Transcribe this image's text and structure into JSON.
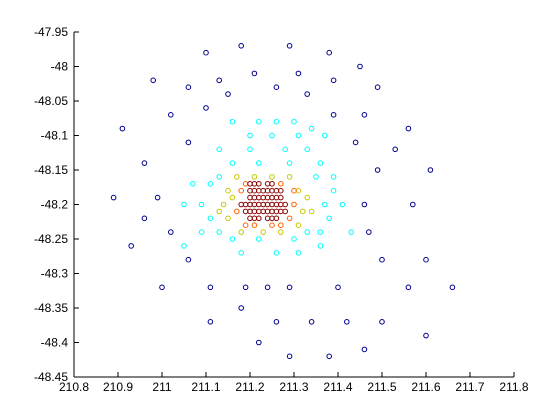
{
  "chart_data": {
    "type": "scatter",
    "title": "",
    "xlabel": "",
    "ylabel": "",
    "xlim": [
      210.8,
      211.8
    ],
    "ylim": [
      -48.45,
      -47.95
    ],
    "grid": false,
    "legend": "none",
    "marker": "circle-open",
    "xtick_labels": [
      "210.8",
      "210.9",
      "211",
      "211.1",
      "211.2",
      "211.3",
      "211.4",
      "211.5",
      "211.6",
      "211.7",
      "211.8"
    ],
    "ytick_labels": [
      "-47.95",
      "-48",
      "-48.05",
      "-48.1",
      "-48.15",
      "-48.2",
      "-48.25",
      "-48.3",
      "-48.35",
      "-48.4",
      "-48.45"
    ],
    "xticks": [
      210.8,
      210.9,
      211.0,
      211.1,
      211.2,
      211.3,
      211.4,
      211.5,
      211.6,
      211.7,
      211.8
    ],
    "yticks": [
      -47.95,
      -48.0,
      -48.05,
      -48.1,
      -48.15,
      -48.2,
      -48.25,
      -48.3,
      -48.35,
      -48.4,
      -48.45
    ],
    "color_scale": [
      "#00008f",
      "#00ffff",
      "#c8c800",
      "#ff6000",
      "#8b0000"
    ],
    "points_low": [
      [
        211.18,
        -47.97
      ],
      [
        211.1,
        -47.98
      ],
      [
        211.29,
        -47.97
      ],
      [
        211.38,
        -47.98
      ],
      [
        211.45,
        -48.0
      ],
      [
        211.21,
        -48.01
      ],
      [
        211.31,
        -48.01
      ],
      [
        211.13,
        -48.02
      ],
      [
        211.39,
        -48.02
      ],
      [
        210.98,
        -48.02
      ],
      [
        211.06,
        -48.03
      ],
      [
        211.26,
        -48.03
      ],
      [
        211.49,
        -48.03
      ],
      [
        211.15,
        -48.04
      ],
      [
        211.33,
        -48.04
      ],
      [
        211.1,
        -48.06
      ],
      [
        211.02,
        -48.07
      ],
      [
        211.39,
        -48.07
      ],
      [
        211.46,
        -48.07
      ],
      [
        211.56,
        -48.09
      ],
      [
        210.91,
        -48.09
      ],
      [
        211.53,
        -48.12
      ],
      [
        211.06,
        -48.11
      ],
      [
        211.44,
        -48.11
      ],
      [
        210.96,
        -48.14
      ],
      [
        211.49,
        -48.15
      ],
      [
        211.61,
        -48.15
      ],
      [
        210.99,
        -48.19
      ],
      [
        210.89,
        -48.19
      ],
      [
        211.46,
        -48.2
      ],
      [
        211.57,
        -48.2
      ],
      [
        211.02,
        -48.24
      ],
      [
        210.96,
        -48.22
      ],
      [
        211.47,
        -48.24
      ],
      [
        210.93,
        -48.26
      ],
      [
        211.06,
        -48.28
      ],
      [
        211.5,
        -48.28
      ],
      [
        211.6,
        -48.28
      ],
      [
        211.11,
        -48.32
      ],
      [
        211.4,
        -48.32
      ],
      [
        211.56,
        -48.32
      ],
      [
        211.0,
        -48.32
      ],
      [
        211.29,
        -48.32
      ],
      [
        211.66,
        -48.32
      ],
      [
        211.19,
        -48.32
      ],
      [
        211.18,
        -48.35
      ],
      [
        211.24,
        -48.32
      ],
      [
        211.11,
        -48.37
      ],
      [
        211.26,
        -48.37
      ],
      [
        211.34,
        -48.37
      ],
      [
        211.42,
        -48.37
      ],
      [
        211.5,
        -48.37
      ],
      [
        211.6,
        -48.39
      ],
      [
        211.22,
        -48.4
      ],
      [
        211.46,
        -48.41
      ],
      [
        211.38,
        -48.42
      ],
      [
        211.29,
        -48.42
      ]
    ],
    "points_cyan": [
      [
        211.16,
        -48.08
      ],
      [
        211.22,
        -48.08
      ],
      [
        211.26,
        -48.08
      ],
      [
        211.3,
        -48.08
      ],
      [
        211.34,
        -48.09
      ],
      [
        211.2,
        -48.1
      ],
      [
        211.25,
        -48.1
      ],
      [
        211.31,
        -48.1
      ],
      [
        211.37,
        -48.1
      ],
      [
        211.13,
        -48.12
      ],
      [
        211.2,
        -48.12
      ],
      [
        211.28,
        -48.12
      ],
      [
        211.33,
        -48.12
      ],
      [
        211.16,
        -48.14
      ],
      [
        211.22,
        -48.14
      ],
      [
        211.29,
        -48.14
      ],
      [
        211.36,
        -48.14
      ],
      [
        211.13,
        -48.16
      ],
      [
        211.35,
        -48.16
      ],
      [
        211.39,
        -48.16
      ],
      [
        211.11,
        -48.17
      ],
      [
        211.39,
        -48.18
      ],
      [
        211.09,
        -48.2
      ],
      [
        211.41,
        -48.2
      ],
      [
        211.37,
        -48.2
      ],
      [
        211.11,
        -48.22
      ],
      [
        211.38,
        -48.22
      ],
      [
        211.13,
        -48.24
      ],
      [
        211.36,
        -48.24
      ],
      [
        211.16,
        -48.25
      ],
      [
        211.22,
        -48.25
      ],
      [
        211.3,
        -48.25
      ],
      [
        211.33,
        -48.24
      ],
      [
        211.18,
        -48.27
      ],
      [
        211.26,
        -48.27
      ],
      [
        211.31,
        -48.27
      ],
      [
        211.36,
        -48.26
      ],
      [
        211.05,
        -48.26
      ],
      [
        211.09,
        -48.24
      ],
      [
        211.07,
        -48.17
      ],
      [
        211.05,
        -48.2
      ],
      [
        211.43,
        -48.24
      ]
    ],
    "points_yellow": [
      [
        211.17,
        -48.16
      ],
      [
        211.21,
        -48.16
      ],
      [
        211.25,
        -48.16
      ],
      [
        211.29,
        -48.16
      ],
      [
        211.15,
        -48.18
      ],
      [
        211.31,
        -48.18
      ],
      [
        211.33,
        -48.19
      ],
      [
        211.14,
        -48.2
      ],
      [
        211.32,
        -48.21
      ],
      [
        211.15,
        -48.22
      ],
      [
        211.31,
        -48.23
      ],
      [
        211.18,
        -48.24
      ],
      [
        211.23,
        -48.24
      ],
      [
        211.27,
        -48.24
      ],
      [
        211.13,
        -48.21
      ],
      [
        211.34,
        -48.21
      ],
      [
        211.16,
        -48.19
      ]
    ],
    "points_orange": [
      [
        211.19,
        -48.17
      ],
      [
        211.27,
        -48.17
      ],
      [
        211.3,
        -48.18
      ],
      [
        211.17,
        -48.21
      ],
      [
        211.29,
        -48.22
      ],
      [
        211.19,
        -48.23
      ],
      [
        211.27,
        -48.23
      ],
      [
        211.21,
        -48.23
      ],
      [
        211.25,
        -48.23
      ],
      [
        211.3,
        -48.2
      ],
      [
        211.18,
        -48.18
      ]
    ],
    "points_high": [
      [
        211.2,
        -48.17
      ],
      [
        211.21,
        -48.17
      ],
      [
        211.22,
        -48.17
      ],
      [
        211.24,
        -48.17
      ],
      [
        211.25,
        -48.17
      ],
      [
        211.2,
        -48.18
      ],
      [
        211.21,
        -48.18
      ],
      [
        211.22,
        -48.18
      ],
      [
        211.23,
        -48.18
      ],
      [
        211.24,
        -48.18
      ],
      [
        211.25,
        -48.18
      ],
      [
        211.26,
        -48.18
      ],
      [
        211.27,
        -48.18
      ],
      [
        211.2,
        -48.19
      ],
      [
        211.21,
        -48.19
      ],
      [
        211.22,
        -48.19
      ],
      [
        211.23,
        -48.19
      ],
      [
        211.24,
        -48.19
      ],
      [
        211.25,
        -48.19
      ],
      [
        211.26,
        -48.19
      ],
      [
        211.27,
        -48.19
      ],
      [
        211.18,
        -48.2
      ],
      [
        211.19,
        -48.2
      ],
      [
        211.2,
        -48.2
      ],
      [
        211.21,
        -48.2
      ],
      [
        211.22,
        -48.2
      ],
      [
        211.23,
        -48.2
      ],
      [
        211.24,
        -48.2
      ],
      [
        211.25,
        -48.2
      ],
      [
        211.26,
        -48.2
      ],
      [
        211.27,
        -48.2
      ],
      [
        211.28,
        -48.2
      ],
      [
        211.19,
        -48.21
      ],
      [
        211.2,
        -48.21
      ],
      [
        211.21,
        -48.21
      ],
      [
        211.22,
        -48.21
      ],
      [
        211.23,
        -48.21
      ],
      [
        211.24,
        -48.21
      ],
      [
        211.25,
        -48.21
      ],
      [
        211.26,
        -48.21
      ],
      [
        211.27,
        -48.21
      ],
      [
        211.28,
        -48.21
      ],
      [
        211.2,
        -48.22
      ],
      [
        211.21,
        -48.22
      ],
      [
        211.22,
        -48.22
      ],
      [
        211.24,
        -48.22
      ],
      [
        211.25,
        -48.22
      ],
      [
        211.26,
        -48.22
      ]
    ]
  }
}
